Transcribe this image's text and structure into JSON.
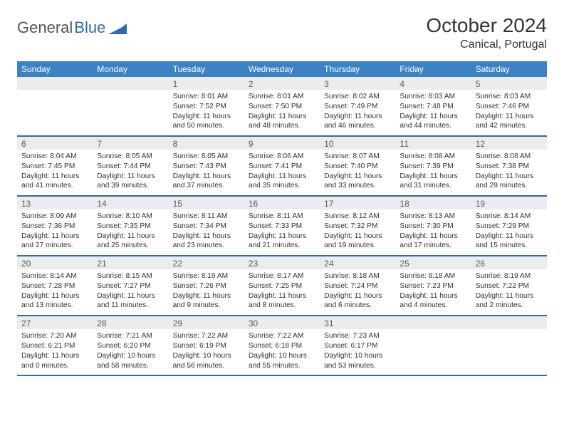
{
  "brand": {
    "part1": "General",
    "part2": "Blue"
  },
  "title": "October 2024",
  "location": "Canical, Portugal",
  "colors": {
    "header_bg": "#3b82c4",
    "header_text": "#ffffff",
    "daynum_bg": "#ececec",
    "daynum_text": "#5a5a5a",
    "row_border": "#2a6cb4",
    "logo_gray": "#545454",
    "logo_blue": "#2a6cb4"
  },
  "day_names": [
    "Sunday",
    "Monday",
    "Tuesday",
    "Wednesday",
    "Thursday",
    "Friday",
    "Saturday"
  ],
  "weeks": [
    [
      {
        "n": "",
        "sr": "",
        "ss": "",
        "dl": ""
      },
      {
        "n": "",
        "sr": "",
        "ss": "",
        "dl": ""
      },
      {
        "n": "1",
        "sr": "Sunrise: 8:01 AM",
        "ss": "Sunset: 7:52 PM",
        "dl": "Daylight: 11 hours and 50 minutes."
      },
      {
        "n": "2",
        "sr": "Sunrise: 8:01 AM",
        "ss": "Sunset: 7:50 PM",
        "dl": "Daylight: 11 hours and 48 minutes."
      },
      {
        "n": "3",
        "sr": "Sunrise: 8:02 AM",
        "ss": "Sunset: 7:49 PM",
        "dl": "Daylight: 11 hours and 46 minutes."
      },
      {
        "n": "4",
        "sr": "Sunrise: 8:03 AM",
        "ss": "Sunset: 7:48 PM",
        "dl": "Daylight: 11 hours and 44 minutes."
      },
      {
        "n": "5",
        "sr": "Sunrise: 8:03 AM",
        "ss": "Sunset: 7:46 PM",
        "dl": "Daylight: 11 hours and 42 minutes."
      }
    ],
    [
      {
        "n": "6",
        "sr": "Sunrise: 8:04 AM",
        "ss": "Sunset: 7:45 PM",
        "dl": "Daylight: 11 hours and 41 minutes."
      },
      {
        "n": "7",
        "sr": "Sunrise: 8:05 AM",
        "ss": "Sunset: 7:44 PM",
        "dl": "Daylight: 11 hours and 39 minutes."
      },
      {
        "n": "8",
        "sr": "Sunrise: 8:05 AM",
        "ss": "Sunset: 7:43 PM",
        "dl": "Daylight: 11 hours and 37 minutes."
      },
      {
        "n": "9",
        "sr": "Sunrise: 8:06 AM",
        "ss": "Sunset: 7:41 PM",
        "dl": "Daylight: 11 hours and 35 minutes."
      },
      {
        "n": "10",
        "sr": "Sunrise: 8:07 AM",
        "ss": "Sunset: 7:40 PM",
        "dl": "Daylight: 11 hours and 33 minutes."
      },
      {
        "n": "11",
        "sr": "Sunrise: 8:08 AM",
        "ss": "Sunset: 7:39 PM",
        "dl": "Daylight: 11 hours and 31 minutes."
      },
      {
        "n": "12",
        "sr": "Sunrise: 8:08 AM",
        "ss": "Sunset: 7:38 PM",
        "dl": "Daylight: 11 hours and 29 minutes."
      }
    ],
    [
      {
        "n": "13",
        "sr": "Sunrise: 8:09 AM",
        "ss": "Sunset: 7:36 PM",
        "dl": "Daylight: 11 hours and 27 minutes."
      },
      {
        "n": "14",
        "sr": "Sunrise: 8:10 AM",
        "ss": "Sunset: 7:35 PM",
        "dl": "Daylight: 11 hours and 25 minutes."
      },
      {
        "n": "15",
        "sr": "Sunrise: 8:11 AM",
        "ss": "Sunset: 7:34 PM",
        "dl": "Daylight: 11 hours and 23 minutes."
      },
      {
        "n": "16",
        "sr": "Sunrise: 8:11 AM",
        "ss": "Sunset: 7:33 PM",
        "dl": "Daylight: 11 hours and 21 minutes."
      },
      {
        "n": "17",
        "sr": "Sunrise: 8:12 AM",
        "ss": "Sunset: 7:32 PM",
        "dl": "Daylight: 11 hours and 19 minutes."
      },
      {
        "n": "18",
        "sr": "Sunrise: 8:13 AM",
        "ss": "Sunset: 7:30 PM",
        "dl": "Daylight: 11 hours and 17 minutes."
      },
      {
        "n": "19",
        "sr": "Sunrise: 8:14 AM",
        "ss": "Sunset: 7:29 PM",
        "dl": "Daylight: 11 hours and 15 minutes."
      }
    ],
    [
      {
        "n": "20",
        "sr": "Sunrise: 8:14 AM",
        "ss": "Sunset: 7:28 PM",
        "dl": "Daylight: 11 hours and 13 minutes."
      },
      {
        "n": "21",
        "sr": "Sunrise: 8:15 AM",
        "ss": "Sunset: 7:27 PM",
        "dl": "Daylight: 11 hours and 11 minutes."
      },
      {
        "n": "22",
        "sr": "Sunrise: 8:16 AM",
        "ss": "Sunset: 7:26 PM",
        "dl": "Daylight: 11 hours and 9 minutes."
      },
      {
        "n": "23",
        "sr": "Sunrise: 8:17 AM",
        "ss": "Sunset: 7:25 PM",
        "dl": "Daylight: 11 hours and 8 minutes."
      },
      {
        "n": "24",
        "sr": "Sunrise: 8:18 AM",
        "ss": "Sunset: 7:24 PM",
        "dl": "Daylight: 11 hours and 6 minutes."
      },
      {
        "n": "25",
        "sr": "Sunrise: 8:18 AM",
        "ss": "Sunset: 7:23 PM",
        "dl": "Daylight: 11 hours and 4 minutes."
      },
      {
        "n": "26",
        "sr": "Sunrise: 8:19 AM",
        "ss": "Sunset: 7:22 PM",
        "dl": "Daylight: 11 hours and 2 minutes."
      }
    ],
    [
      {
        "n": "27",
        "sr": "Sunrise: 7:20 AM",
        "ss": "Sunset: 6:21 PM",
        "dl": "Daylight: 11 hours and 0 minutes."
      },
      {
        "n": "28",
        "sr": "Sunrise: 7:21 AM",
        "ss": "Sunset: 6:20 PM",
        "dl": "Daylight: 10 hours and 58 minutes."
      },
      {
        "n": "29",
        "sr": "Sunrise: 7:22 AM",
        "ss": "Sunset: 6:19 PM",
        "dl": "Daylight: 10 hours and 56 minutes."
      },
      {
        "n": "30",
        "sr": "Sunrise: 7:22 AM",
        "ss": "Sunset: 6:18 PM",
        "dl": "Daylight: 10 hours and 55 minutes."
      },
      {
        "n": "31",
        "sr": "Sunrise: 7:23 AM",
        "ss": "Sunset: 6:17 PM",
        "dl": "Daylight: 10 hours and 53 minutes."
      },
      {
        "n": "",
        "sr": "",
        "ss": "",
        "dl": ""
      },
      {
        "n": "",
        "sr": "",
        "ss": "",
        "dl": ""
      }
    ]
  ]
}
